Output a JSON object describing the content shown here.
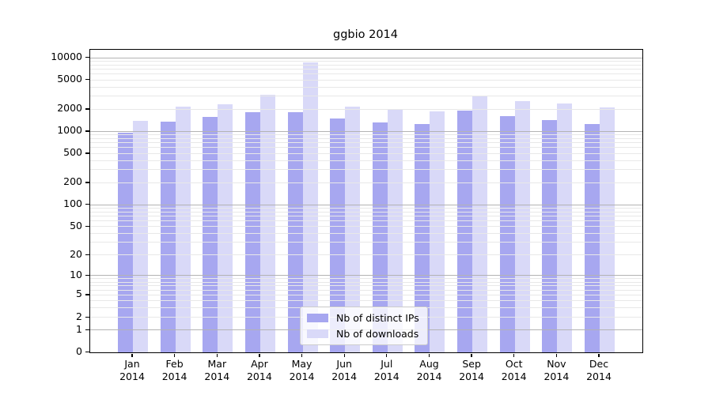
{
  "chart_data": {
    "type": "bar",
    "title": "ggbio 2014",
    "categories": [
      "Jan",
      "Feb",
      "Mar",
      "Apr",
      "May",
      "Jun",
      "Jul",
      "Aug",
      "Sep",
      "Oct",
      "Nov",
      "Dec"
    ],
    "category_year": "2014",
    "series": [
      {
        "name": "Nb of distinct IPs",
        "color": "#a7a7f0",
        "values": [
          950,
          1350,
          1570,
          1810,
          1840,
          1500,
          1310,
          1270,
          1910,
          1600,
          1430,
          1270
        ]
      },
      {
        "name": "Nb of downloads",
        "color": "#d9d9f8",
        "values": [
          1400,
          2170,
          2320,
          3130,
          8700,
          2160,
          1950,
          1880,
          2950,
          2600,
          2400,
          2130
        ]
      }
    ],
    "y_ticks": [
      0,
      1,
      2,
      5,
      10,
      20,
      50,
      100,
      200,
      500,
      1000,
      2000,
      5000,
      10000
    ],
    "ylim": [
      0,
      10000
    ],
    "scale": "log1p",
    "grid": true,
    "grid_major_color": "#b3b3b3",
    "grid_minor_color": "#e8e8e8",
    "legend_position": "lower center",
    "xlabel": "",
    "ylabel": ""
  }
}
